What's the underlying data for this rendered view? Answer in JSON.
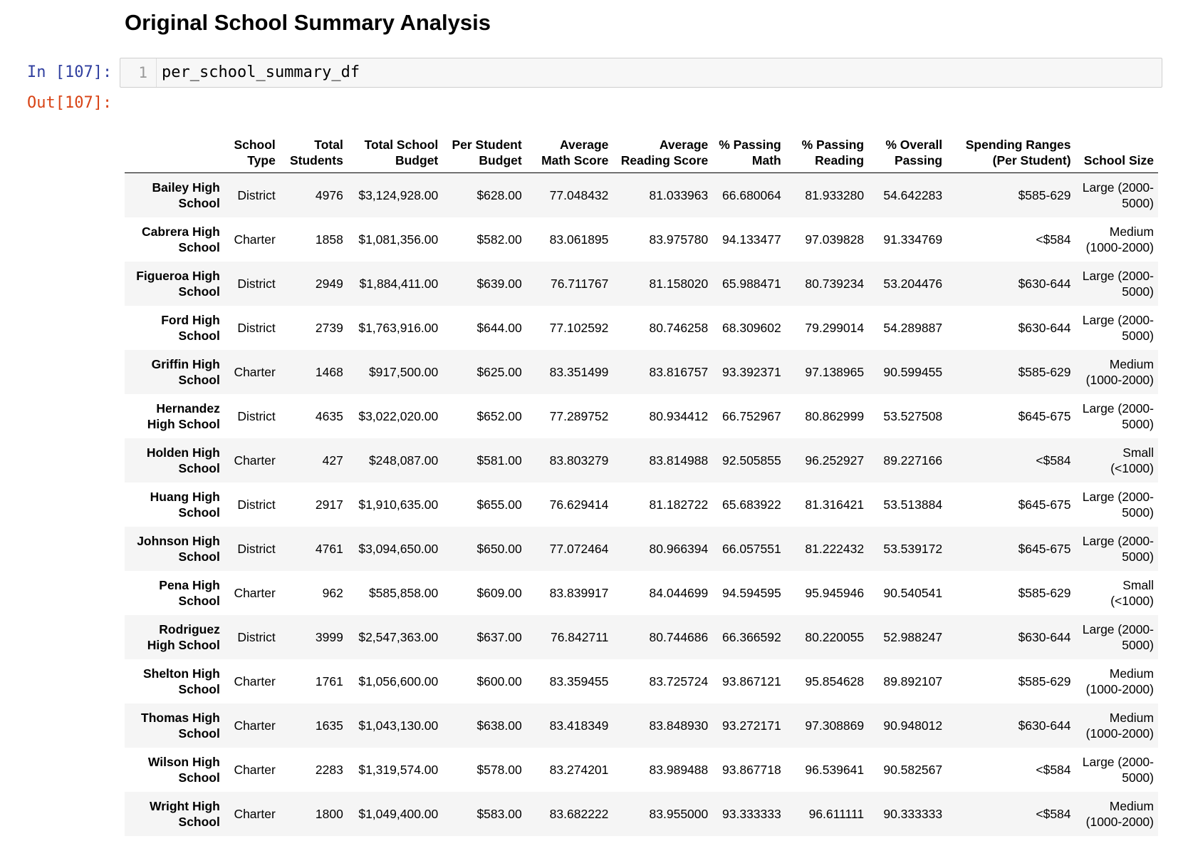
{
  "page": {
    "heading": "Original School Summary Analysis"
  },
  "cell": {
    "in_prompt": "In [107]:",
    "out_prompt": "Out[107]:",
    "line_number": "1",
    "code": "per_school_summary_df"
  },
  "table": {
    "columns": [
      "",
      "School Type",
      "Total Students",
      "Total School Budget",
      "Per Student Budget",
      "Average Math Score",
      "Average Reading Score",
      "% Passing Math",
      "% Passing Reading",
      "% Overall Passing",
      "Spending Ranges (Per Student)",
      "School Size"
    ],
    "rows": [
      [
        "Bailey High School",
        "District",
        "4976",
        "$3,124,928.00",
        "$628.00",
        "77.048432",
        "81.033963",
        "66.680064",
        "81.933280",
        "54.642283",
        "$585-629",
        "Large (2000-5000)"
      ],
      [
        "Cabrera High School",
        "Charter",
        "1858",
        "$1,081,356.00",
        "$582.00",
        "83.061895",
        "83.975780",
        "94.133477",
        "97.039828",
        "91.334769",
        "<$584",
        "Medium (1000-2000)"
      ],
      [
        "Figueroa High School",
        "District",
        "2949",
        "$1,884,411.00",
        "$639.00",
        "76.711767",
        "81.158020",
        "65.988471",
        "80.739234",
        "53.204476",
        "$630-644",
        "Large (2000-5000)"
      ],
      [
        "Ford High School",
        "District",
        "2739",
        "$1,763,916.00",
        "$644.00",
        "77.102592",
        "80.746258",
        "68.309602",
        "79.299014",
        "54.289887",
        "$630-644",
        "Large (2000-5000)"
      ],
      [
        "Griffin High School",
        "Charter",
        "1468",
        "$917,500.00",
        "$625.00",
        "83.351499",
        "83.816757",
        "93.392371",
        "97.138965",
        "90.599455",
        "$585-629",
        "Medium (1000-2000)"
      ],
      [
        "Hernandez High School",
        "District",
        "4635",
        "$3,022,020.00",
        "$652.00",
        "77.289752",
        "80.934412",
        "66.752967",
        "80.862999",
        "53.527508",
        "$645-675",
        "Large (2000-5000)"
      ],
      [
        "Holden High School",
        "Charter",
        "427",
        "$248,087.00",
        "$581.00",
        "83.803279",
        "83.814988",
        "92.505855",
        "96.252927",
        "89.227166",
        "<$584",
        "Small (<1000)"
      ],
      [
        "Huang High School",
        "District",
        "2917",
        "$1,910,635.00",
        "$655.00",
        "76.629414",
        "81.182722",
        "65.683922",
        "81.316421",
        "53.513884",
        "$645-675",
        "Large (2000-5000)"
      ],
      [
        "Johnson High School",
        "District",
        "4761",
        "$3,094,650.00",
        "$650.00",
        "77.072464",
        "80.966394",
        "66.057551",
        "81.222432",
        "53.539172",
        "$645-675",
        "Large (2000-5000)"
      ],
      [
        "Pena High School",
        "Charter",
        "962",
        "$585,858.00",
        "$609.00",
        "83.839917",
        "84.044699",
        "94.594595",
        "95.945946",
        "90.540541",
        "$585-629",
        "Small (<1000)"
      ],
      [
        "Rodriguez High School",
        "District",
        "3999",
        "$2,547,363.00",
        "$637.00",
        "76.842711",
        "80.744686",
        "66.366592",
        "80.220055",
        "52.988247",
        "$630-644",
        "Large (2000-5000)"
      ],
      [
        "Shelton High School",
        "Charter",
        "1761",
        "$1,056,600.00",
        "$600.00",
        "83.359455",
        "83.725724",
        "93.867121",
        "95.854628",
        "89.892107",
        "$585-629",
        "Medium (1000-2000)"
      ],
      [
        "Thomas High School",
        "Charter",
        "1635",
        "$1,043,130.00",
        "$638.00",
        "83.418349",
        "83.848930",
        "93.272171",
        "97.308869",
        "90.948012",
        "$630-644",
        "Medium (1000-2000)"
      ],
      [
        "Wilson High School",
        "Charter",
        "2283",
        "$1,319,574.00",
        "$578.00",
        "83.274201",
        "83.989488",
        "93.867718",
        "96.539641",
        "90.582567",
        "<$584",
        "Large (2000-5000)"
      ],
      [
        "Wright High School",
        "Charter",
        "1800",
        "$1,049,400.00",
        "$583.00",
        "83.682222",
        "83.955000",
        "93.333333",
        "96.611111",
        "90.333333",
        "<$584",
        "Medium (1000-2000)"
      ]
    ]
  }
}
